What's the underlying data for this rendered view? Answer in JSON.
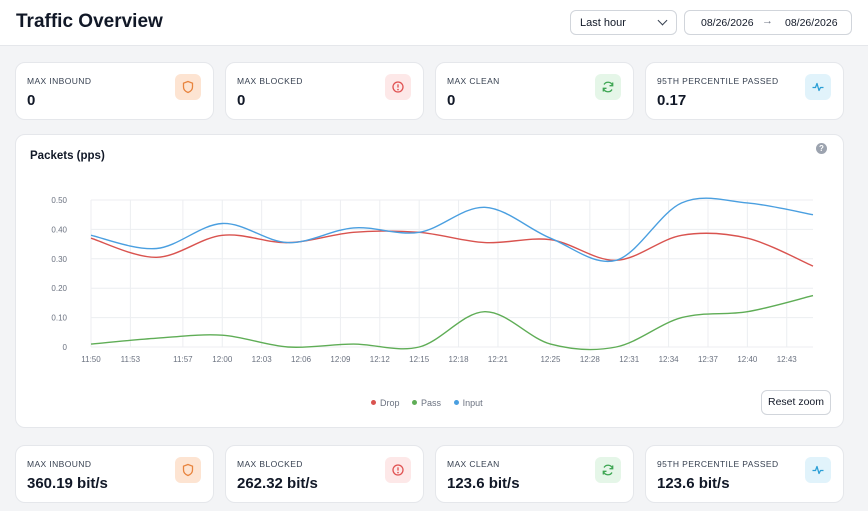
{
  "header": {
    "title": "Traffic Overview",
    "range": "Last hour",
    "date_from": "08/26/2026",
    "date_to": "08/26/2026"
  },
  "top_cards": [
    {
      "label": "MAX INBOUND",
      "value": "0",
      "icon": "shield-icon"
    },
    {
      "label": "MAX BLOCKED",
      "value": "0",
      "icon": "alert-circle-icon"
    },
    {
      "label": "MAX CLEAN",
      "value": "0",
      "icon": "refresh-icon"
    },
    {
      "label": "95TH PERCENTILE PASSED",
      "value": "0.17",
      "icon": "pulse-icon"
    }
  ],
  "bottom_cards": [
    {
      "label": "MAX INBOUND",
      "value": "360.19 bit/s",
      "icon": "shield-icon"
    },
    {
      "label": "MAX BLOCKED",
      "value": "262.32 bit/s",
      "icon": "alert-circle-icon"
    },
    {
      "label": "MAX CLEAN",
      "value": "123.6 bit/s",
      "icon": "refresh-icon"
    },
    {
      "label": "95TH PERCENTILE PASSED",
      "value": "123.6 bit/s",
      "icon": "pulse-icon"
    }
  ],
  "chart": {
    "title": "Packets (pps)",
    "help": "?",
    "reset_label": "Reset zoom"
  },
  "colors": {
    "drop": "#d9534f",
    "pass": "#5fad56",
    "input": "#4a9fe0"
  },
  "chart_data": {
    "type": "line",
    "title": "Packets (pps)",
    "ylim": [
      0,
      0.5
    ],
    "y_ticks": [
      "0",
      "0.10",
      "0.20",
      "0.30",
      "0.40",
      "0.50"
    ],
    "x_ticks": [
      "11:50",
      "11:53",
      "11:57",
      "12:00",
      "12:03",
      "12:06",
      "12:09",
      "12:12",
      "12:15",
      "12:18",
      "12:21",
      "12:25",
      "12:28",
      "12:31",
      "12:34",
      "12:37",
      "12:40",
      "12:43"
    ],
    "grid": true,
    "legend_position": "bottom",
    "series": [
      {
        "name": "Drop",
        "x": [
          "11:50",
          "11:55",
          "12:00",
          "12:05",
          "12:10",
          "12:15",
          "12:20",
          "12:25",
          "12:30",
          "12:35",
          "12:40",
          "12:45"
        ],
        "values": [
          0.37,
          0.305,
          0.38,
          0.355,
          0.39,
          0.39,
          0.355,
          0.365,
          0.295,
          0.38,
          0.37,
          0.275
        ]
      },
      {
        "name": "Pass",
        "x": [
          "11:50",
          "11:55",
          "12:00",
          "12:05",
          "12:10",
          "12:15",
          "12:20",
          "12:25",
          "12:30",
          "12:35",
          "12:40",
          "12:45"
        ],
        "values": [
          0.01,
          0.03,
          0.04,
          0.0,
          0.01,
          0.0,
          0.12,
          0.01,
          0.0,
          0.1,
          0.12,
          0.175
        ]
      },
      {
        "name": "Input",
        "x": [
          "11:50",
          "11:55",
          "12:00",
          "12:05",
          "12:10",
          "12:15",
          "12:20",
          "12:25",
          "12:30",
          "12:35",
          "12:40",
          "12:45"
        ],
        "values": [
          0.38,
          0.335,
          0.42,
          0.355,
          0.405,
          0.39,
          0.475,
          0.37,
          0.295,
          0.49,
          0.49,
          0.45
        ]
      }
    ]
  }
}
